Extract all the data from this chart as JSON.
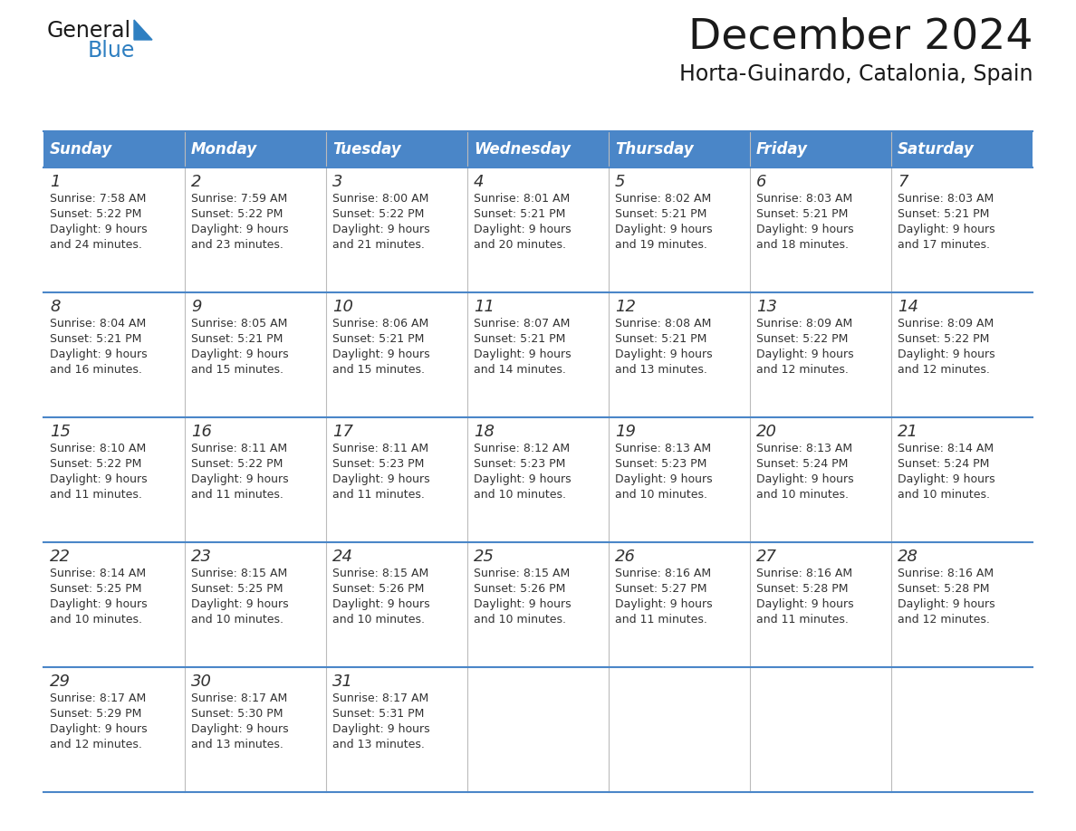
{
  "title": "December 2024",
  "subtitle": "Horta-Guinardo, Catalonia, Spain",
  "header_bg_color": "#4A86C8",
  "header_text_color": "#FFFFFF",
  "cell_bg_color": "#FFFFFF",
  "row_sep_color": "#4A86C8",
  "col_sep_color": "#BBBBBB",
  "title_color": "#1a1a1a",
  "subtitle_color": "#1a1a1a",
  "text_color": "#333333",
  "day_num_color": "#333333",
  "logo_general_color": "#1a1a1a",
  "logo_blue_color": "#2E7FC1",
  "logo_triangle_color": "#2E7FC1",
  "days_of_week": [
    "Sunday",
    "Monday",
    "Tuesday",
    "Wednesday",
    "Thursday",
    "Friday",
    "Saturday"
  ],
  "weeks": [
    [
      {
        "day": 1,
        "sunrise": "7:58 AM",
        "sunset": "5:22 PM",
        "daylight_hours": 9,
        "daylight_minutes": 24
      },
      {
        "day": 2,
        "sunrise": "7:59 AM",
        "sunset": "5:22 PM",
        "daylight_hours": 9,
        "daylight_minutes": 23
      },
      {
        "day": 3,
        "sunrise": "8:00 AM",
        "sunset": "5:22 PM",
        "daylight_hours": 9,
        "daylight_minutes": 21
      },
      {
        "day": 4,
        "sunrise": "8:01 AM",
        "sunset": "5:21 PM",
        "daylight_hours": 9,
        "daylight_minutes": 20
      },
      {
        "day": 5,
        "sunrise": "8:02 AM",
        "sunset": "5:21 PM",
        "daylight_hours": 9,
        "daylight_minutes": 19
      },
      {
        "day": 6,
        "sunrise": "8:03 AM",
        "sunset": "5:21 PM",
        "daylight_hours": 9,
        "daylight_minutes": 18
      },
      {
        "day": 7,
        "sunrise": "8:03 AM",
        "sunset": "5:21 PM",
        "daylight_hours": 9,
        "daylight_minutes": 17
      }
    ],
    [
      {
        "day": 8,
        "sunrise": "8:04 AM",
        "sunset": "5:21 PM",
        "daylight_hours": 9,
        "daylight_minutes": 16
      },
      {
        "day": 9,
        "sunrise": "8:05 AM",
        "sunset": "5:21 PM",
        "daylight_hours": 9,
        "daylight_minutes": 15
      },
      {
        "day": 10,
        "sunrise": "8:06 AM",
        "sunset": "5:21 PM",
        "daylight_hours": 9,
        "daylight_minutes": 15
      },
      {
        "day": 11,
        "sunrise": "8:07 AM",
        "sunset": "5:21 PM",
        "daylight_hours": 9,
        "daylight_minutes": 14
      },
      {
        "day": 12,
        "sunrise": "8:08 AM",
        "sunset": "5:21 PM",
        "daylight_hours": 9,
        "daylight_minutes": 13
      },
      {
        "day": 13,
        "sunrise": "8:09 AM",
        "sunset": "5:22 PM",
        "daylight_hours": 9,
        "daylight_minutes": 12
      },
      {
        "day": 14,
        "sunrise": "8:09 AM",
        "sunset": "5:22 PM",
        "daylight_hours": 9,
        "daylight_minutes": 12
      }
    ],
    [
      {
        "day": 15,
        "sunrise": "8:10 AM",
        "sunset": "5:22 PM",
        "daylight_hours": 9,
        "daylight_minutes": 11
      },
      {
        "day": 16,
        "sunrise": "8:11 AM",
        "sunset": "5:22 PM",
        "daylight_hours": 9,
        "daylight_minutes": 11
      },
      {
        "day": 17,
        "sunrise": "8:11 AM",
        "sunset": "5:23 PM",
        "daylight_hours": 9,
        "daylight_minutes": 11
      },
      {
        "day": 18,
        "sunrise": "8:12 AM",
        "sunset": "5:23 PM",
        "daylight_hours": 9,
        "daylight_minutes": 10
      },
      {
        "day": 19,
        "sunrise": "8:13 AM",
        "sunset": "5:23 PM",
        "daylight_hours": 9,
        "daylight_minutes": 10
      },
      {
        "day": 20,
        "sunrise": "8:13 AM",
        "sunset": "5:24 PM",
        "daylight_hours": 9,
        "daylight_minutes": 10
      },
      {
        "day": 21,
        "sunrise": "8:14 AM",
        "sunset": "5:24 PM",
        "daylight_hours": 9,
        "daylight_minutes": 10
      }
    ],
    [
      {
        "day": 22,
        "sunrise": "8:14 AM",
        "sunset": "5:25 PM",
        "daylight_hours": 9,
        "daylight_minutes": 10
      },
      {
        "day": 23,
        "sunrise": "8:15 AM",
        "sunset": "5:25 PM",
        "daylight_hours": 9,
        "daylight_minutes": 10
      },
      {
        "day": 24,
        "sunrise": "8:15 AM",
        "sunset": "5:26 PM",
        "daylight_hours": 9,
        "daylight_minutes": 10
      },
      {
        "day": 25,
        "sunrise": "8:15 AM",
        "sunset": "5:26 PM",
        "daylight_hours": 9,
        "daylight_minutes": 10
      },
      {
        "day": 26,
        "sunrise": "8:16 AM",
        "sunset": "5:27 PM",
        "daylight_hours": 9,
        "daylight_minutes": 11
      },
      {
        "day": 27,
        "sunrise": "8:16 AM",
        "sunset": "5:28 PM",
        "daylight_hours": 9,
        "daylight_minutes": 11
      },
      {
        "day": 28,
        "sunrise": "8:16 AM",
        "sunset": "5:28 PM",
        "daylight_hours": 9,
        "daylight_minutes": 12
      }
    ],
    [
      {
        "day": 29,
        "sunrise": "8:17 AM",
        "sunset": "5:29 PM",
        "daylight_hours": 9,
        "daylight_minutes": 12
      },
      {
        "day": 30,
        "sunrise": "8:17 AM",
        "sunset": "5:30 PM",
        "daylight_hours": 9,
        "daylight_minutes": 13
      },
      {
        "day": 31,
        "sunrise": "8:17 AM",
        "sunset": "5:31 PM",
        "daylight_hours": 9,
        "daylight_minutes": 13
      },
      null,
      null,
      null,
      null
    ]
  ]
}
